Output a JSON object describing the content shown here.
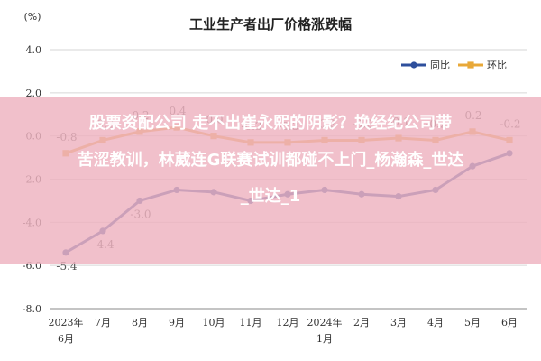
{
  "overlay": {
    "line1": "股票资配公司 走不出崔永熙的阴影？换经纪公司带",
    "line2": "苦涩教训，林葳连G联赛试训都碰不上门_杨瀚森_世达",
    "line3": "_世达_1"
  },
  "colors": {
    "yoy": "#2e4f9c",
    "mom": "#e8a838",
    "grid": "#d6d6d6",
    "bg": "#ffffff"
  },
  "chart_data": {
    "type": "line",
    "title": "工业生产者出厂价格涨跌幅",
    "unit": "(%)",
    "categories": [
      "2023年6月",
      "7月",
      "8月",
      "9月",
      "10月",
      "11月",
      "12月",
      "2024年1月",
      "2月",
      "3月",
      "4月",
      "5月",
      "6月"
    ],
    "category_lines": [
      [
        "2023年",
        "6月"
      ],
      [
        "7月"
      ],
      [
        "8月"
      ],
      [
        "9月"
      ],
      [
        "10月"
      ],
      [
        "11月"
      ],
      [
        "12月"
      ],
      [
        "2024年",
        "1月"
      ],
      [
        "2月"
      ],
      [
        "3月"
      ],
      [
        "4月"
      ],
      [
        "5月"
      ],
      [
        "6月"
      ]
    ],
    "ylim": [
      -8.0,
      4.0
    ],
    "yticks": [
      "4.0",
      "2.0",
      "0.0",
      "-2.0",
      "-4.0",
      "-6.0",
      "-8.0"
    ],
    "grid": true,
    "legend": "top-right",
    "series": [
      {
        "name": "同比",
        "values": [
          -5.4,
          -4.4,
          -3.0,
          -2.5,
          -2.6,
          -3.0,
          -2.7,
          -2.5,
          -2.7,
          -2.8,
          -2.5,
          -1.4,
          -0.8
        ],
        "labels": [
          "-5.4",
          "-4.4",
          "-3.0",
          "",
          "",
          "",
          "",
          "",
          "",
          "",
          "",
          "",
          ""
        ]
      },
      {
        "name": "环比",
        "values": [
          -0.8,
          -0.2,
          0.2,
          0.4,
          0.0,
          -0.3,
          -0.3,
          -0.2,
          -0.2,
          -0.1,
          -0.2,
          0.2,
          -0.2
        ],
        "labels": [
          "-0.8",
          "-0.2",
          "0.2",
          "0.4",
          "0.0",
          "-0.3",
          "-0.3",
          "-0.2",
          "-0.2",
          "-0.1",
          "-0.2",
          "0.2",
          "-0.2"
        ]
      }
    ]
  }
}
